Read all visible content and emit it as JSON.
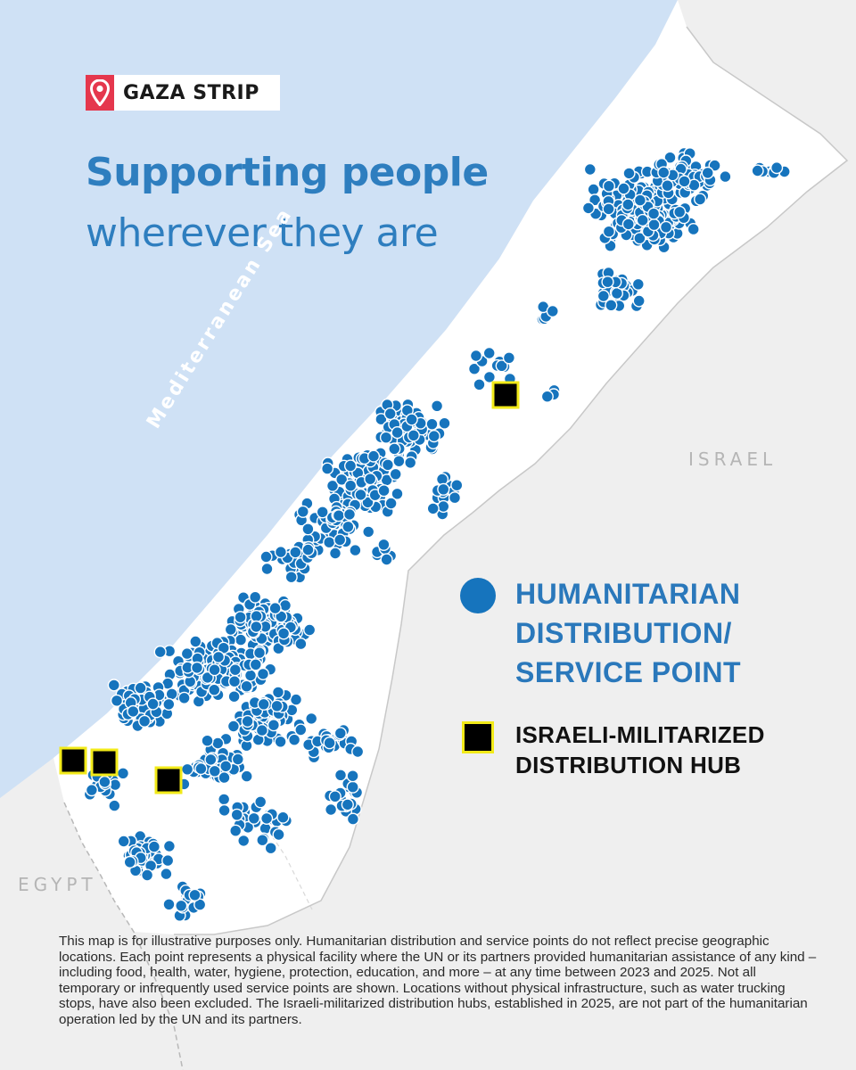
{
  "header": {
    "badge_label": "GAZA STRIP",
    "badge_icon": "location-pin-icon",
    "title": "Supporting people",
    "subtitle": "wherever they are"
  },
  "map": {
    "sea_label": "Mediterranean Sea",
    "neighbor_east": "ISRAEL",
    "neighbor_south": "EGYPT",
    "colors": {
      "sea": "#cfe1f5",
      "land": "#efefef",
      "strip": "#ffffff",
      "service_point": "#1674bd",
      "hub_fill": "#000000",
      "hub_border": "#f2ea19",
      "accent_pin": "#e5374d"
    }
  },
  "legend": {
    "service_point_label": [
      "HUMANITARIAN",
      "DISTRIBUTION/",
      "SERVICE POINT"
    ],
    "hub_label": [
      "ISRAELI-MILITARIZED",
      "DISTRIBUTION HUB"
    ]
  },
  "footnote": "This map is for illustrative purposes only. Humanitarian distribution and service points do not reflect precise geographic locations. Each point represents a physical facility where the UN or its partners provided humanitarian assistance of any kind – including food, health, water, hygiene, protection, education, and more – at any time between 2023 and 2025. Not all temporary or infrequently used service points are shown. Locations without physical infrastructure, such as water trucking stops, have also been excluded. The Israeli-militarized distribution hubs, established in 2025, are not part of the humanitarian operation led by the UN and its partners."
}
